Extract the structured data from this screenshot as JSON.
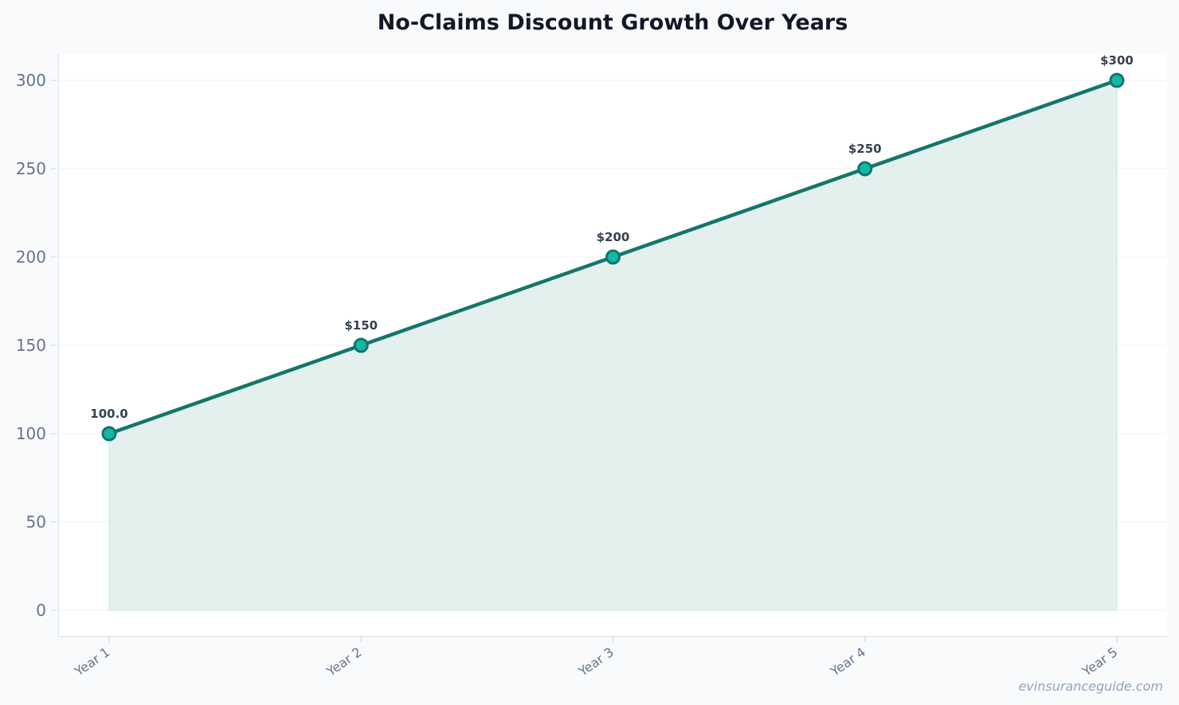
{
  "chart_data": {
    "type": "area",
    "title": "No-Claims Discount Growth Over Years",
    "xlabel": "",
    "ylabel": "",
    "categories": [
      "Year 1",
      "Year 2",
      "Year 3",
      "Year 4",
      "Year 5"
    ],
    "series": [
      {
        "values": [
          100,
          150,
          200,
          250,
          300
        ],
        "data_labels": [
          "100.0",
          "$150",
          "$200",
          "$250",
          "$300"
        ]
      }
    ],
    "ylim": [
      0,
      300
    ],
    "yticks": [
      0,
      50,
      100,
      150,
      200,
      250,
      300
    ],
    "grid": true,
    "legend": "none",
    "colors": {
      "line": "#13766b",
      "marker_fill": "#14b8a6",
      "marker_edge": "#0f766e",
      "area_fill": "#e3f0ed",
      "background": "#f8fafc",
      "plot_background": "#ffffff"
    }
  },
  "watermark": "evinsuranceguide.com"
}
